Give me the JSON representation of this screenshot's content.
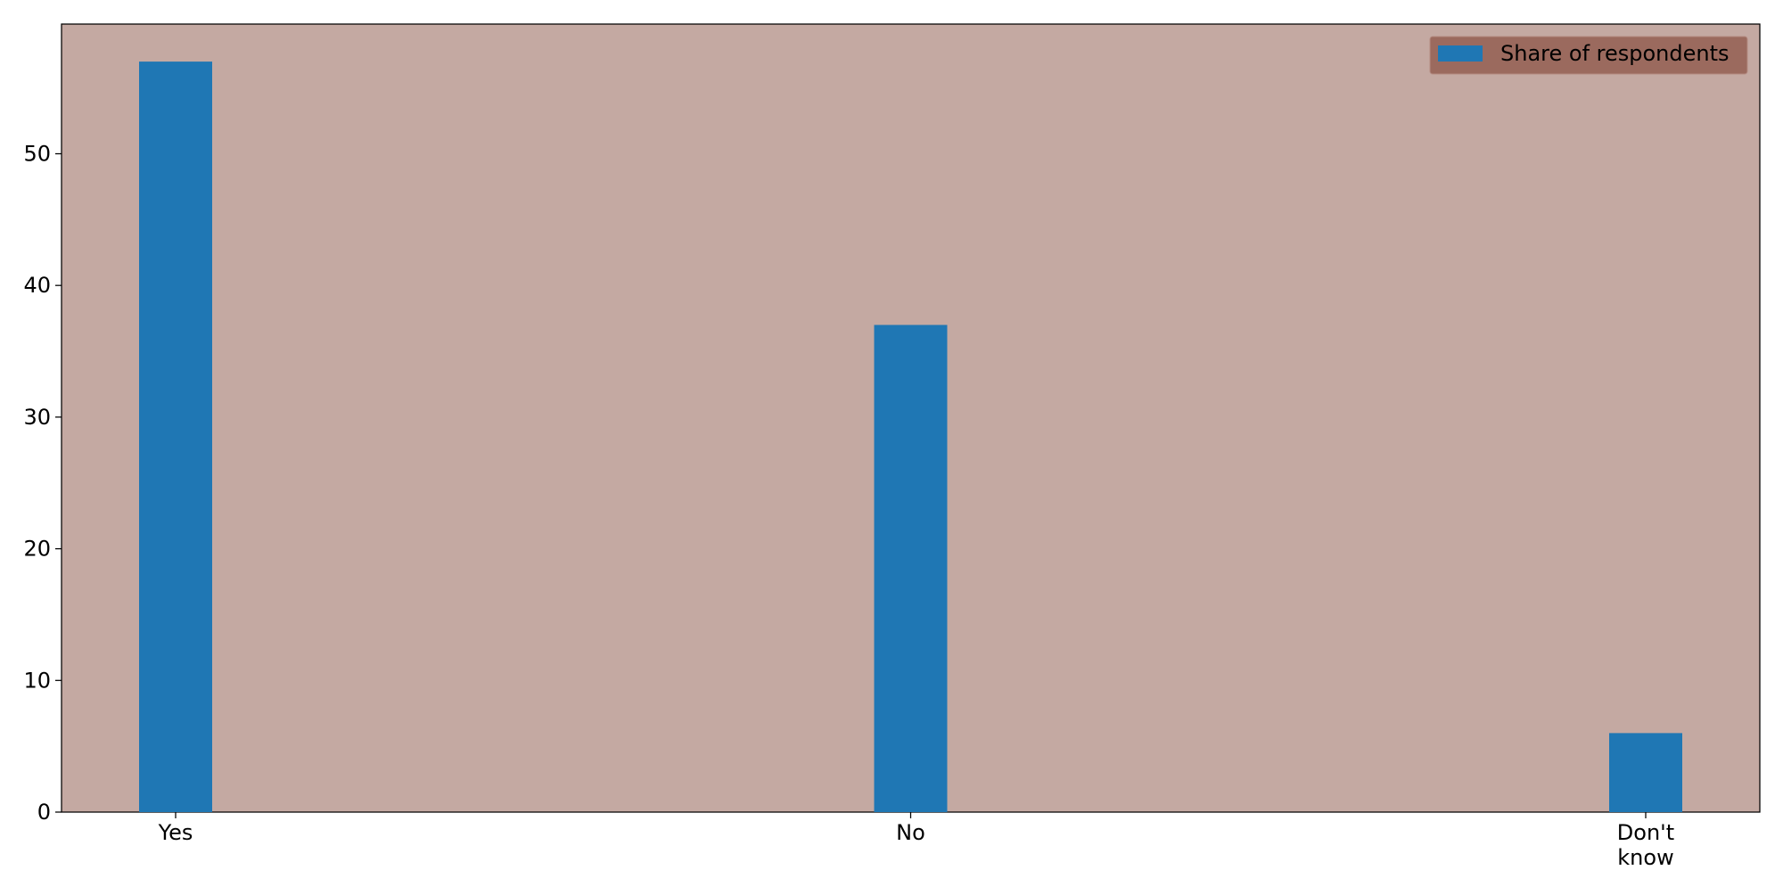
{
  "chart_data": {
    "type": "bar",
    "title": "",
    "xlabel": "",
    "ylabel": "",
    "categories": [
      "Yes",
      "No",
      "Don't\nknow"
    ],
    "series": [
      {
        "name": "Share of respondents",
        "values": [
          57,
          37,
          6
        ],
        "color": "#1f77b4"
      }
    ],
    "ylim": [
      0,
      59.85
    ],
    "yticks": [
      0,
      10,
      20,
      30,
      40,
      50
    ],
    "grid": false,
    "legend_position": "top-right",
    "plot_background": "#c4a9a2",
    "legend_background": "#9b6a5e"
  }
}
